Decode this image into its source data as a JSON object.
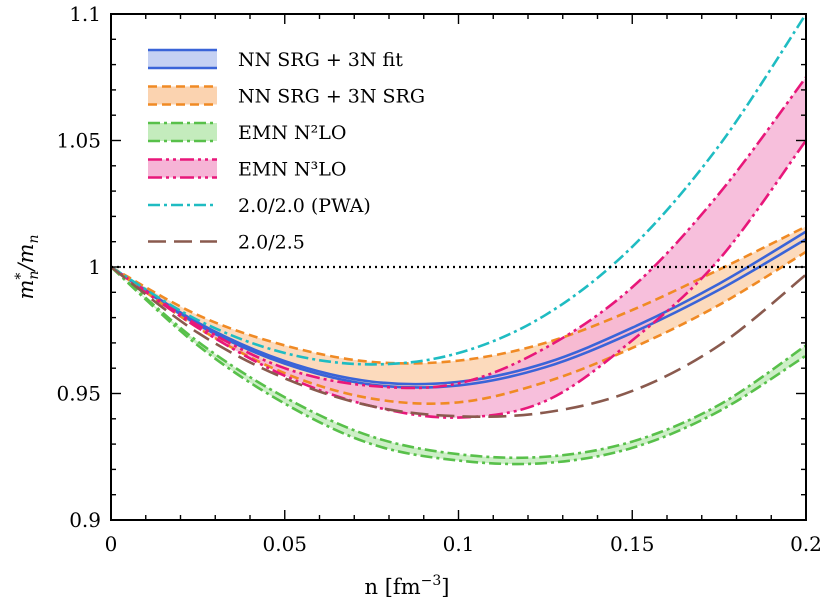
{
  "chart_data": {
    "type": "line",
    "xlabel": "n [fm",
    "xlabel_sup": "−3",
    "xlabel_tail": "]",
    "ylabel": "m",
    "ylabel_sup": "*",
    "ylabel_sub": "n",
    "ylabel_mid": "/m",
    "ylabel_sub2": "n",
    "xlim": [
      0,
      0.2
    ],
    "ylim": [
      0.9,
      1.1
    ],
    "xticks": [
      0,
      0.05,
      0.1,
      0.15,
      0.2
    ],
    "xtick_labels": [
      "0",
      "0.05",
      "0.1",
      "0.15",
      "0.2"
    ],
    "yticks": [
      0.9,
      0.95,
      1.0,
      1.05,
      1.1
    ],
    "ytick_labels": [
      "0.9",
      "0.95",
      "1",
      "1.05",
      "1.1"
    ],
    "legend_position": "top-left",
    "reference_line": {
      "y": 1.0,
      "style": "dotted",
      "color": "#000000"
    },
    "series": [
      {
        "name": "NN SRG + 3N fit",
        "color": "#3a64d8",
        "fill": "#c5d1f3",
        "dash": "solid",
        "kind": "band",
        "x": [
          0,
          0.025,
          0.05,
          0.075,
          0.1,
          0.125,
          0.15,
          0.175,
          0.2
        ],
        "lower": [
          1.0,
          0.9772,
          0.9618,
          0.9535,
          0.9532,
          0.9604,
          0.974,
          0.991,
          1.011
        ],
        "upper": [
          1.0,
          0.978,
          0.9628,
          0.9547,
          0.9546,
          0.962,
          0.976,
          0.9934,
          1.014
        ]
      },
      {
        "name": "NN SRG + 3N SRG",
        "color": "#f08a24",
        "fill": "#fbd3b0",
        "dash": "9,5",
        "kind": "band",
        "x": [
          0,
          0.025,
          0.05,
          0.075,
          0.1,
          0.125,
          0.15,
          0.175,
          0.2
        ],
        "lower": [
          1.0,
          0.976,
          0.958,
          0.948,
          0.9465,
          0.9545,
          0.968,
          0.985,
          1.006
        ],
        "upper": [
          1.0,
          0.981,
          0.969,
          0.9625,
          0.963,
          0.97,
          0.983,
          0.999,
          1.016
        ]
      },
      {
        "name": "EMN N²LO",
        "color": "#58c04a",
        "fill": "#c4ecbd",
        "dash": "12,4,3,4",
        "kind": "band",
        "x": [
          0,
          0.025,
          0.05,
          0.075,
          0.1,
          0.125,
          0.15,
          0.175,
          0.2
        ],
        "lower": [
          1.0,
          0.969,
          0.946,
          0.93,
          0.9235,
          0.9225,
          0.9285,
          0.943,
          0.965
        ],
        "upper": [
          1.0,
          0.9705,
          0.9485,
          0.933,
          0.926,
          0.925,
          0.931,
          0.9455,
          0.969
        ]
      },
      {
        "name": "EMN N³LO",
        "color": "#e8177a",
        "fill": "#f6b4d6",
        "dash": "14,4,3,4,3,4",
        "kind": "band",
        "x": [
          0,
          0.025,
          0.05,
          0.075,
          0.1,
          0.125,
          0.15,
          0.175,
          0.2
        ],
        "lower": [
          1.0,
          0.976,
          0.957,
          0.945,
          0.9405,
          0.947,
          0.971,
          1.003,
          1.05
        ],
        "upper": [
          1.0,
          0.977,
          0.96,
          0.953,
          0.954,
          0.968,
          0.992,
          1.029,
          1.075
        ]
      },
      {
        "name": "2.0/2.0 (PWA)",
        "color": "#1fbcc2",
        "dash": "12,4,3,4",
        "kind": "line",
        "x": [
          0,
          0.025,
          0.05,
          0.075,
          0.1,
          0.125,
          0.15,
          0.175,
          0.2
        ],
        "y": [
          1.0,
          0.979,
          0.966,
          0.9615,
          0.966,
          0.981,
          1.008,
          1.048,
          1.1
        ]
      },
      {
        "name": "2.0/2.5",
        "color": "#8a5a4e",
        "dash": "18,8",
        "kind": "line",
        "x": [
          0,
          0.025,
          0.05,
          0.075,
          0.1,
          0.125,
          0.15,
          0.175,
          0.2
        ],
        "y": [
          1.0,
          0.974,
          0.956,
          0.945,
          0.941,
          0.9425,
          0.951,
          0.969,
          0.997
        ]
      }
    ]
  }
}
